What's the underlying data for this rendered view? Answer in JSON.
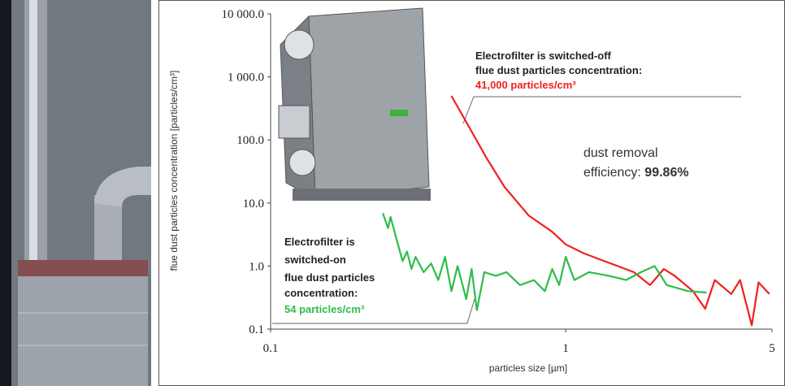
{
  "chart_data": {
    "type": "line",
    "x_label": "particles size [µm]",
    "y_label": "flue dust particles concentration [particles/cm³]",
    "log_x": true,
    "log_y": true,
    "grid": false,
    "xlim": [
      0.1,
      5
    ],
    "xticks": [
      0.1,
      1,
      5
    ],
    "ylim": [
      0.1,
      10000
    ],
    "yticks": [
      {
        "value": 0.1,
        "label": "0.1"
      },
      {
        "value": 1,
        "label": "1.0"
      },
      {
        "value": 10,
        "label": "10.0"
      },
      {
        "value": 100,
        "label": "100.0"
      },
      {
        "value": 1000,
        "label": "1 000.0"
      },
      {
        "value": 10000,
        "label": "10 000.0"
      }
    ],
    "series": [
      {
        "color": "#f02020",
        "x": [
          0.41,
          0.46,
          0.54,
          0.62,
          0.75,
          0.9,
          1.0,
          1.15,
          1.32,
          1.5,
          1.7,
          1.93,
          2.15,
          2.34,
          2.7,
          2.97,
          3.2,
          3.64,
          3.9,
          4.27,
          4.5,
          4.9
        ],
        "values": [
          500,
          193,
          51,
          18,
          6.3,
          3.5,
          2.2,
          1.6,
          1.25,
          1.0,
          0.8,
          0.5,
          0.9,
          0.7,
          0.4,
          0.21,
          0.6,
          0.36,
          0.6,
          0.115,
          0.55,
          0.36
        ]
      },
      {
        "color": "#2ebd4a",
        "x": [
          0.24,
          0.25,
          0.255,
          0.27,
          0.28,
          0.29,
          0.3,
          0.31,
          0.33,
          0.35,
          0.37,
          0.39,
          0.41,
          0.43,
          0.46,
          0.48,
          0.5,
          0.53,
          0.58,
          0.63,
          0.7,
          0.78,
          0.85,
          0.9,
          0.95,
          1.0,
          1.07,
          1.2,
          1.4,
          1.6,
          1.8,
          2.0,
          2.2,
          2.6,
          3.0
        ],
        "values": [
          6.9,
          4.0,
          6.0,
          2.2,
          1.2,
          1.7,
          0.9,
          1.4,
          0.8,
          1.1,
          0.6,
          1.4,
          0.4,
          1.0,
          0.3,
          0.9,
          0.2,
          0.8,
          0.7,
          0.8,
          0.5,
          0.6,
          0.4,
          0.9,
          0.5,
          1.4,
          0.6,
          0.8,
          0.7,
          0.6,
          0.8,
          1.0,
          0.5,
          0.4,
          0.38
        ]
      }
    ],
    "annotations": {
      "switched_off": {
        "lines": [
          "Electrofilter is switched-off",
          "flue dust particles concentration:"
        ],
        "value": "41,000 particles/cm³"
      },
      "efficiency": {
        "line1": "dust removal",
        "line2": "efficiency: ",
        "value": "99.86%"
      },
      "switched_on": {
        "lines": [
          "Electrofilter is",
          "switched-on",
          "flue dust particles",
          "concentration:"
        ],
        "value": "54 particles/cm³"
      }
    }
  }
}
